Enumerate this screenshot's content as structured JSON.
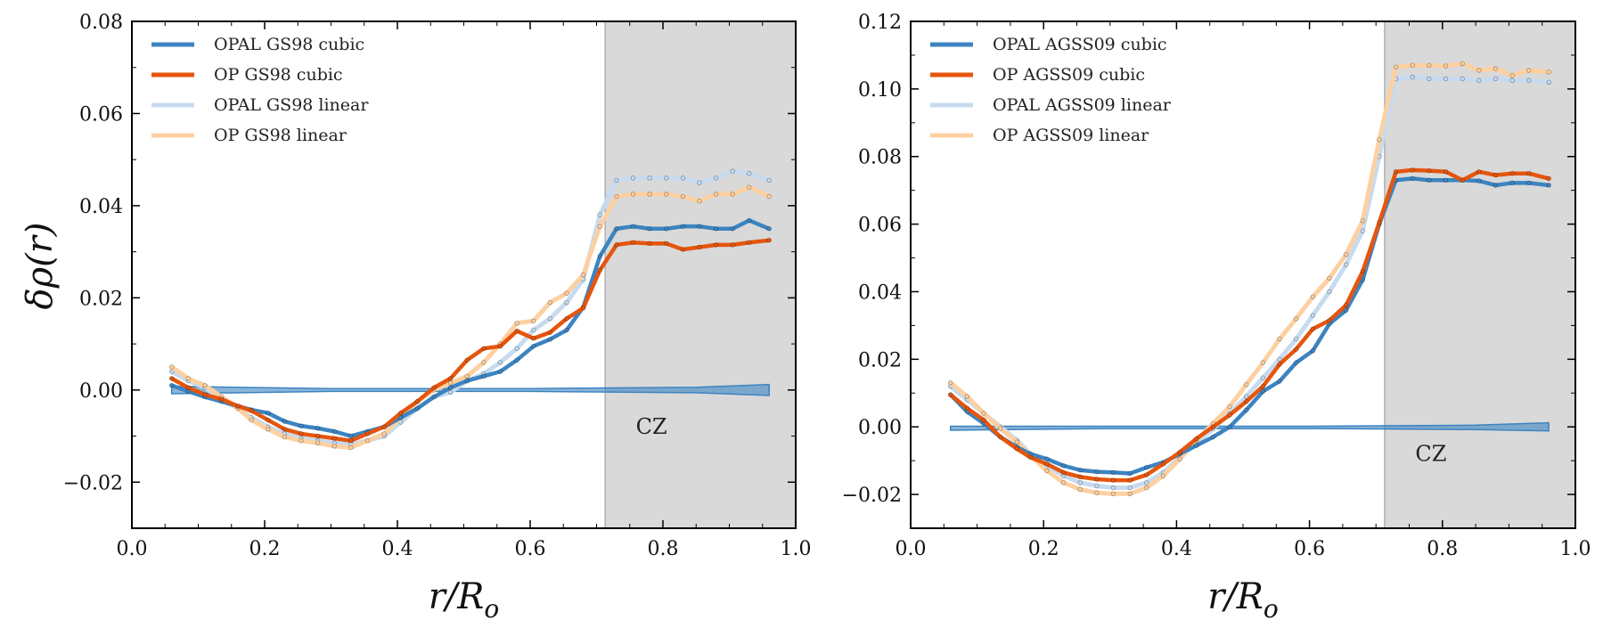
{
  "chart_data": [
    {
      "type": "line",
      "ylabel": "δρ(r)",
      "xlabel": "r/R",
      "xlabel_sub": "o",
      "xlim": [
        0.0,
        1.0
      ],
      "ylim": [
        -0.03,
        0.08
      ],
      "xticks": [
        "0.0",
        "0.2",
        "0.4",
        "0.6",
        "0.8",
        "1.0"
      ],
      "yticks": [
        "−0.02",
        "0.00",
        "0.02",
        "0.04",
        "0.06",
        "0.08"
      ],
      "ytick_values": [
        -0.02,
        0.0,
        0.02,
        0.04,
        0.06,
        0.08
      ],
      "xtick_values": [
        0.0,
        0.2,
        0.4,
        0.6,
        0.8,
        1.0
      ],
      "legend_position": "top-left",
      "shaded_region": {
        "x_start": 0.713,
        "x_end": 1.0,
        "label": "CZ",
        "label_x": 0.77,
        "label_y": -0.008
      },
      "band": {
        "x": [
          0.06,
          0.3,
          0.6,
          0.85,
          0.96
        ],
        "lower": [
          -0.0008,
          -0.0003,
          -0.0003,
          -0.0006,
          -0.0012
        ],
        "upper": [
          0.0008,
          0.0003,
          0.0003,
          0.0006,
          0.0012
        ]
      },
      "x": [
        0.06,
        0.085,
        0.11,
        0.135,
        0.16,
        0.18,
        0.205,
        0.23,
        0.255,
        0.28,
        0.305,
        0.33,
        0.355,
        0.38,
        0.405,
        0.43,
        0.455,
        0.48,
        0.505,
        0.53,
        0.555,
        0.58,
        0.605,
        0.63,
        0.655,
        0.68,
        0.705,
        0.73,
        0.755,
        0.78,
        0.805,
        0.83,
        0.855,
        0.88,
        0.905,
        0.93,
        0.96
      ],
      "series": [
        {
          "name": "OPAL GS98 linear",
          "color": "#c6dbef",
          "width": 5,
          "dotted": true,
          "values": [
            0.004,
            0.002,
            0.0005,
            -0.002,
            -0.004,
            -0.006,
            -0.008,
            -0.0095,
            -0.0105,
            -0.011,
            -0.0115,
            -0.0118,
            -0.011,
            -0.01,
            -0.007,
            -0.004,
            -0.0015,
            -0.0005,
            0.002,
            0.0035,
            0.006,
            0.009,
            0.013,
            0.0155,
            0.019,
            0.024,
            0.038,
            0.0455,
            0.046,
            0.046,
            0.046,
            0.046,
            0.045,
            0.046,
            0.0475,
            0.047,
            0.0455
          ]
        },
        {
          "name": "OP GS98 linear",
          "color": "#fdd0a2",
          "width": 5,
          "dotted": true,
          "values": [
            0.005,
            0.0025,
            0.001,
            -0.0015,
            -0.004,
            -0.0065,
            -0.0085,
            -0.0102,
            -0.011,
            -0.0115,
            -0.0122,
            -0.0125,
            -0.011,
            -0.0095,
            -0.006,
            -0.0025,
            0.0,
            0.0015,
            0.003,
            0.006,
            0.01,
            0.0145,
            0.015,
            0.019,
            0.021,
            0.025,
            0.0355,
            0.042,
            0.0425,
            0.0425,
            0.0425,
            0.042,
            0.041,
            0.0425,
            0.0425,
            0.044,
            0.042
          ]
        },
        {
          "name": "OPAL GS98 cubic",
          "color": "#3c84c1",
          "width": 4.5,
          "dotted": true,
          "values": [
            0.001,
            -0.0003,
            -0.0015,
            -0.0025,
            -0.0035,
            -0.0043,
            -0.005,
            -0.0068,
            -0.0078,
            -0.0083,
            -0.009,
            -0.01,
            -0.009,
            -0.008,
            -0.006,
            -0.004,
            -0.0015,
            0.0005,
            0.002,
            0.003,
            0.004,
            0.0065,
            0.0095,
            0.011,
            0.013,
            0.018,
            0.029,
            0.035,
            0.0355,
            0.035,
            0.035,
            0.0355,
            0.0355,
            0.035,
            0.035,
            0.0368,
            0.035
          ]
        },
        {
          "name": "OP GS98 cubic",
          "color": "#e6550d",
          "width": 4.5,
          "dotted": true,
          "values": [
            0.0025,
            0.0005,
            -0.001,
            -0.002,
            -0.0035,
            -0.0045,
            -0.0065,
            -0.0085,
            -0.0095,
            -0.01,
            -0.0105,
            -0.011,
            -0.0095,
            -0.008,
            -0.005,
            -0.0025,
            0.0005,
            0.0025,
            0.0065,
            0.009,
            0.0095,
            0.0128,
            0.0112,
            0.0125,
            0.0155,
            0.0178,
            0.026,
            0.0315,
            0.032,
            0.0318,
            0.0318,
            0.0305,
            0.031,
            0.0315,
            0.0315,
            0.032,
            0.0325
          ]
        }
      ],
      "legend_entries": [
        {
          "label": "OPAL GS98 cubic",
          "color": "#3c84c1"
        },
        {
          "label": "OP GS98 cubic",
          "color": "#e6550d"
        },
        {
          "label": "OPAL GS98 linear",
          "color": "#c6dbef"
        },
        {
          "label": "OP GS98 linear",
          "color": "#fdd0a2"
        }
      ]
    },
    {
      "type": "line",
      "ylabel": "",
      "xlabel": "r/R",
      "xlabel_sub": "o",
      "xlim": [
        0.0,
        1.0
      ],
      "ylim": [
        -0.03,
        0.12
      ],
      "xticks": [
        "0.0",
        "0.2",
        "0.4",
        "0.6",
        "0.8",
        "1.0"
      ],
      "yticks": [
        "−0.02",
        "0.00",
        "0.02",
        "0.04",
        "0.06",
        "0.08",
        "0.10",
        "0.12"
      ],
      "ytick_values": [
        -0.02,
        0.0,
        0.02,
        0.04,
        0.06,
        0.08,
        0.1,
        0.12
      ],
      "xtick_values": [
        0.0,
        0.2,
        0.4,
        0.6,
        0.8,
        1.0
      ],
      "legend_position": "top-left",
      "shaded_region": {
        "x_start": 0.713,
        "x_end": 1.0,
        "label": "CZ",
        "label_x": 0.77,
        "label_y": -0.008
      },
      "band": {
        "x": [
          0.06,
          0.3,
          0.6,
          0.85,
          0.96
        ],
        "lower": [
          -0.001,
          -0.0005,
          -0.0005,
          -0.0008,
          -0.0012
        ],
        "upper": [
          0.0002,
          0.0002,
          0.0002,
          0.0005,
          0.0012
        ]
      },
      "x": [
        0.06,
        0.085,
        0.11,
        0.135,
        0.16,
        0.18,
        0.205,
        0.23,
        0.255,
        0.28,
        0.305,
        0.33,
        0.355,
        0.38,
        0.405,
        0.43,
        0.455,
        0.48,
        0.505,
        0.53,
        0.555,
        0.58,
        0.605,
        0.63,
        0.655,
        0.68,
        0.705,
        0.73,
        0.755,
        0.78,
        0.805,
        0.83,
        0.855,
        0.88,
        0.905,
        0.93,
        0.96
      ],
      "series": [
        {
          "name": "OPAL AGSS09 linear",
          "color": "#c6dbef",
          "width": 5,
          "dotted": true,
          "values": [
            0.012,
            0.008,
            0.004,
            0.0,
            -0.004,
            -0.008,
            -0.0115,
            -0.0145,
            -0.0165,
            -0.0175,
            -0.018,
            -0.018,
            -0.0165,
            -0.0135,
            -0.009,
            -0.005,
            -0.0005,
            0.004,
            0.009,
            0.0145,
            0.02,
            0.026,
            0.033,
            0.04,
            0.048,
            0.058,
            0.08,
            0.103,
            0.1035,
            0.103,
            0.103,
            0.103,
            0.1025,
            0.103,
            0.1025,
            0.1025,
            0.102
          ]
        },
        {
          "name": "OP AGSS09 linear",
          "color": "#fdd0a2",
          "width": 5,
          "dotted": true,
          "values": [
            0.013,
            0.009,
            0.004,
            -0.0005,
            -0.0045,
            -0.0085,
            -0.013,
            -0.0165,
            -0.0185,
            -0.0195,
            -0.0198,
            -0.0198,
            -0.018,
            -0.0145,
            -0.0095,
            -0.004,
            0.001,
            0.006,
            0.0125,
            0.019,
            0.026,
            0.032,
            0.0385,
            0.044,
            0.051,
            0.061,
            0.085,
            0.1065,
            0.107,
            0.107,
            0.1068,
            0.1075,
            0.1055,
            0.106,
            0.104,
            0.1055,
            0.105
          ]
        },
        {
          "name": "OPAL AGSS09 cubic",
          "color": "#3c84c1",
          "width": 4.5,
          "dotted": true,
          "values": [
            0.0095,
            0.0045,
            0.001,
            -0.003,
            -0.006,
            -0.008,
            -0.0095,
            -0.0115,
            -0.0128,
            -0.0133,
            -0.0135,
            -0.0138,
            -0.012,
            -0.0105,
            -0.008,
            -0.0055,
            -0.003,
            0.0,
            0.005,
            0.0105,
            0.0135,
            0.019,
            0.0225,
            0.0305,
            0.0345,
            0.0435,
            0.06,
            0.073,
            0.0735,
            0.073,
            0.073,
            0.073,
            0.0728,
            0.0715,
            0.0722,
            0.0722,
            0.0715
          ]
        },
        {
          "name": "OP AGSS09 cubic",
          "color": "#e6550d",
          "width": 4.5,
          "dotted": true,
          "values": [
            0.0095,
            0.0055,
            0.002,
            -0.003,
            -0.0065,
            -0.009,
            -0.011,
            -0.0135,
            -0.0148,
            -0.0155,
            -0.0158,
            -0.0158,
            -0.0142,
            -0.011,
            -0.0075,
            -0.0035,
            0.0,
            0.0035,
            0.0075,
            0.012,
            0.0185,
            0.023,
            0.029,
            0.0315,
            0.036,
            0.046,
            0.0605,
            0.0755,
            0.076,
            0.0758,
            0.0755,
            0.073,
            0.0755,
            0.0745,
            0.075,
            0.075,
            0.0735
          ]
        }
      ],
      "legend_entries": [
        {
          "label": "OPAL AGSS09 cubic",
          "color": "#3c84c1"
        },
        {
          "label": "OP AGSS09 cubic",
          "color": "#e6550d"
        },
        {
          "label": "OPAL AGSS09 linear",
          "color": "#c6dbef"
        },
        {
          "label": "OP AGSS09 linear",
          "color": "#fdd0a2"
        }
      ]
    }
  ]
}
